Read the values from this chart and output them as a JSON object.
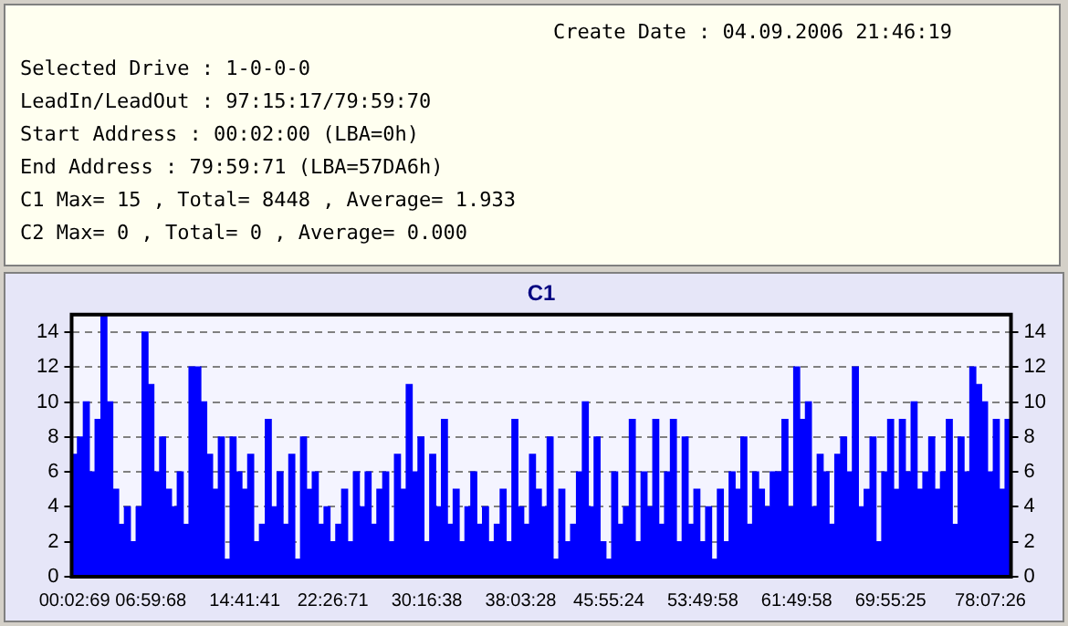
{
  "chart_data": {
    "type": "bar",
    "title": "C1",
    "annotations": [
      "Create Date : 04.09.2006 21:46:19",
      "Selected Drive : 1-0-0-0",
      "LeadIn/LeadOut : 97:15:17/79:59:70",
      "Start Address : 00:02:00 (LBA=0h)",
      "End Address : 79:59:71 (LBA=57DA6h)",
      "C1 Max= 15 , Total= 8448 , Average= 1.933",
      "C2 Max= 0 , Total= 0 , Average= 0.000"
    ],
    "categories": [
      "00:02:69",
      null,
      null,
      null,
      null,
      null,
      null,
      null,
      null,
      null,
      null,
      null,
      null,
      "06:59:68",
      null,
      null,
      null,
      null,
      null,
      null,
      null,
      null,
      null,
      null,
      null,
      null,
      null,
      null,
      null,
      "14:41:41",
      null,
      null,
      null,
      null,
      null,
      null,
      null,
      null,
      null,
      null,
      null,
      null,
      null,
      null,
      "22:26:71",
      null,
      null,
      null,
      null,
      null,
      null,
      null,
      null,
      null,
      null,
      null,
      null,
      null,
      null,
      null,
      "30:16:38",
      null,
      null,
      null,
      null,
      null,
      null,
      null,
      null,
      null,
      null,
      null,
      null,
      null,
      null,
      null,
      "38:03:28",
      null,
      null,
      null,
      null,
      null,
      null,
      null,
      null,
      null,
      null,
      null,
      null,
      null,
      null,
      "45:55:24",
      null,
      null,
      null,
      null,
      null,
      null,
      null,
      null,
      null,
      null,
      null,
      null,
      null,
      null,
      null,
      "53:49:58",
      null,
      null,
      null,
      null,
      null,
      null,
      null,
      null,
      null,
      null,
      null,
      null,
      null,
      null,
      null,
      "61:49:58",
      null,
      null,
      null,
      null,
      null,
      null,
      null,
      null,
      null,
      null,
      null,
      null,
      null,
      null,
      null,
      "69:55:25",
      null,
      null,
      null,
      null,
      null,
      null,
      null,
      null,
      null,
      null,
      null,
      null,
      null,
      null,
      null,
      null,
      "78:07:26",
      null,
      null,
      null
    ],
    "values": [
      7,
      8,
      10,
      6,
      9,
      15,
      10,
      5,
      3,
      4,
      2,
      4,
      14,
      11,
      6,
      8,
      5,
      4,
      6,
      3,
      12,
      12,
      10,
      7,
      5,
      8,
      1,
      8,
      6,
      5,
      7,
      2,
      3,
      9,
      4,
      6,
      3,
      7,
      1,
      8,
      5,
      6,
      3,
      4,
      2,
      3,
      5,
      2,
      6,
      4,
      6,
      3,
      5,
      6,
      2,
      7,
      5,
      11,
      6,
      8,
      2,
      7,
      4,
      9,
      3,
      5,
      2,
      4,
      6,
      3,
      4,
      2,
      3,
      5,
      2,
      9,
      4,
      3,
      7,
      5,
      4,
      8,
      1,
      5,
      2,
      3,
      6,
      10,
      4,
      8,
      2,
      1,
      6,
      3,
      4,
      9,
      2,
      6,
      4,
      9,
      3,
      6,
      9,
      2,
      8,
      3,
      5,
      2,
      4,
      1,
      5,
      2,
      6,
      5,
      8,
      3,
      6,
      5,
      4,
      6,
      6,
      9,
      4,
      12,
      9,
      10,
      4,
      7,
      6,
      3,
      7,
      8,
      6,
      12,
      4,
      5,
      8,
      2,
      6,
      9,
      5,
      9,
      6,
      10,
      5,
      6,
      8,
      5,
      6,
      9,
      3,
      8,
      6,
      12,
      11,
      10,
      6,
      9,
      5,
      9
    ],
    "color": "#0000ff",
    "ylim": [
      0,
      15
    ],
    "yticks": [
      0,
      2,
      4,
      6,
      8,
      10,
      12,
      14
    ],
    "y2lim": [
      0,
      15
    ],
    "y2ticks": [
      0,
      2,
      4,
      6,
      8,
      10,
      12,
      14
    ],
    "grid": "y",
    "legend": false
  }
}
